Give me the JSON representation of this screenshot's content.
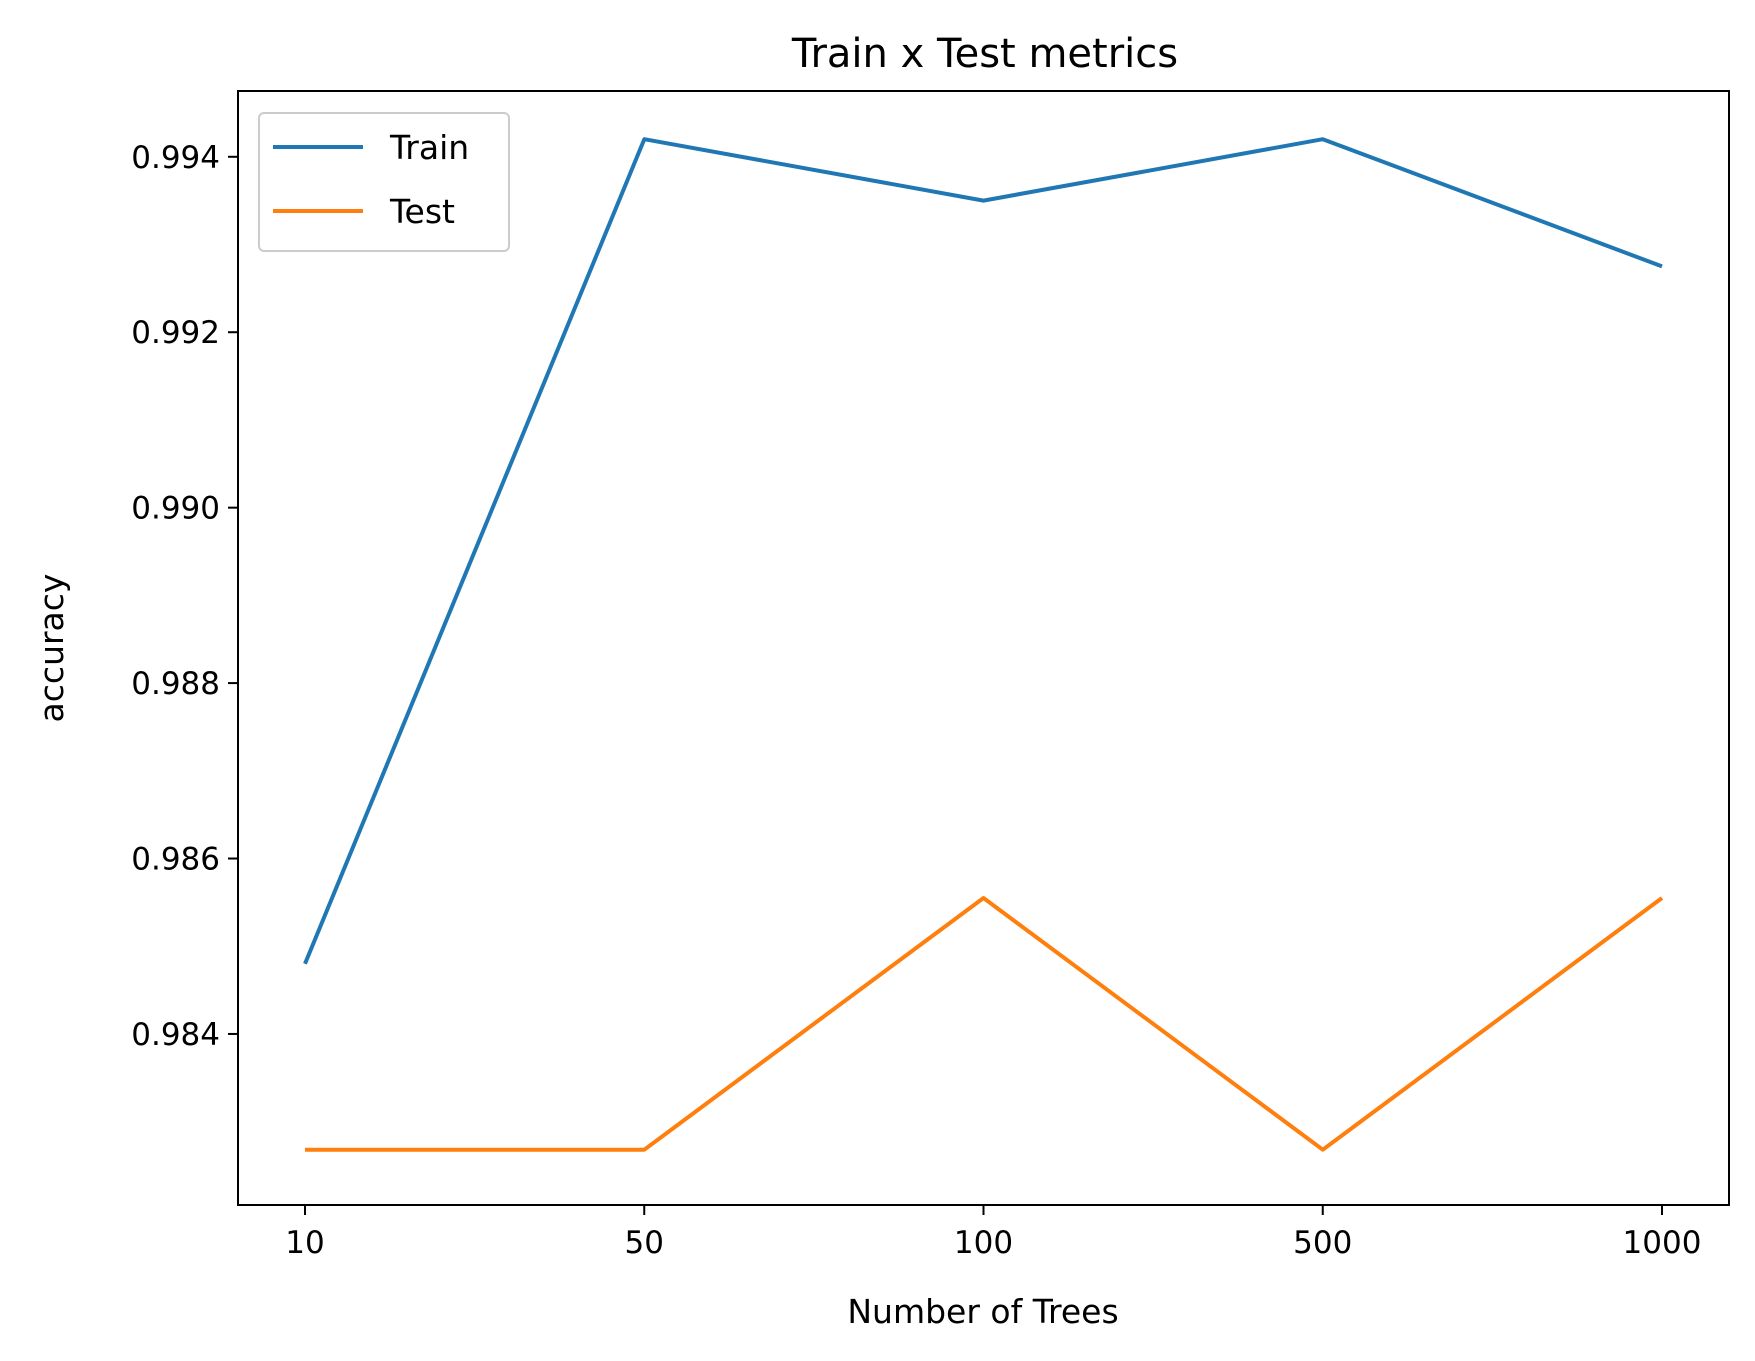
{
  "chart_data": {
    "type": "line",
    "title": "Train x Test metrics",
    "xlabel": "Number of Trees",
    "ylabel": "accuracy",
    "categories": [
      "10",
      "50",
      "100",
      "500",
      "1000"
    ],
    "ylim": [
      0.98205,
      0.99475
    ],
    "yticks": [
      0.984,
      0.986,
      0.988,
      0.99,
      0.992,
      0.994
    ],
    "ytick_labels": [
      "0.984",
      "0.986",
      "0.988",
      "0.990",
      "0.992",
      "0.994"
    ],
    "grid": false,
    "legend_position": "top-left",
    "series": [
      {
        "name": "Train",
        "color": "#1f77b4",
        "values": [
          0.9848,
          0.9942,
          0.9935,
          0.9942,
          0.99275
        ]
      },
      {
        "name": "Test",
        "color": "#ff7f0e",
        "values": [
          0.98268,
          0.98268,
          0.98555,
          0.98268,
          0.98555
        ]
      }
    ]
  }
}
